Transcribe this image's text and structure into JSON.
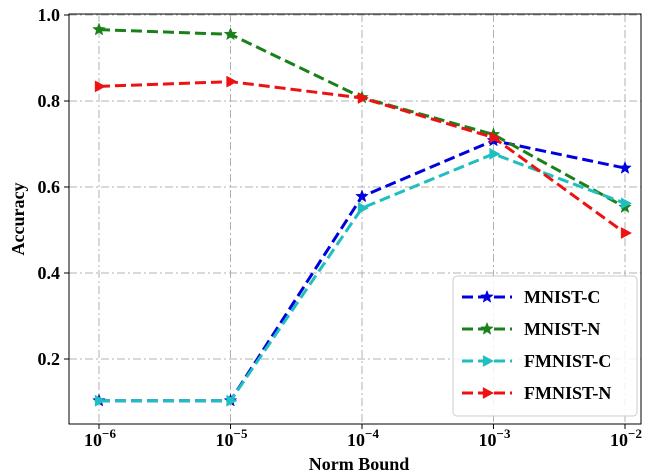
{
  "chart_data": {
    "type": "line",
    "xscale": "log",
    "x": [
      1e-06,
      1e-05,
      0.0001,
      0.001,
      0.01
    ],
    "x_tick_labels": [
      {
        "base": "10",
        "exp": "−6"
      },
      {
        "base": "10",
        "exp": "−5"
      },
      {
        "base": "10",
        "exp": "−4"
      },
      {
        "base": "10",
        "exp": "−3"
      },
      {
        "base": "10",
        "exp": "−2"
      }
    ],
    "y_ticks": [
      "0.2",
      "0.4",
      "0.6",
      "0.8",
      "1.0"
    ],
    "ylim": [
      0.07,
      1.0
    ],
    "xlabel": "Norm Bound",
    "ylabel": "Accuracy",
    "grid": true,
    "legend_position": "bottom-right",
    "series": [
      {
        "name": "MNIST-C",
        "color": "#0000dd",
        "marker": "star",
        "values": [
          0.103,
          0.103,
          0.578,
          0.708,
          0.644
        ]
      },
      {
        "name": "MNIST-N",
        "color": "#1a801a",
        "marker": "star",
        "values": [
          0.966,
          0.955,
          0.808,
          0.722,
          0.553
        ]
      },
      {
        "name": "FMNIST-C",
        "color": "#1fbfbf",
        "marker": "triangle-right",
        "values": [
          0.103,
          0.103,
          0.551,
          0.677,
          0.562
        ]
      },
      {
        "name": "FMNIST-N",
        "color": "#ee1111",
        "marker": "triangle-right",
        "values": [
          0.834,
          0.845,
          0.807,
          0.715,
          0.493
        ]
      }
    ]
  }
}
